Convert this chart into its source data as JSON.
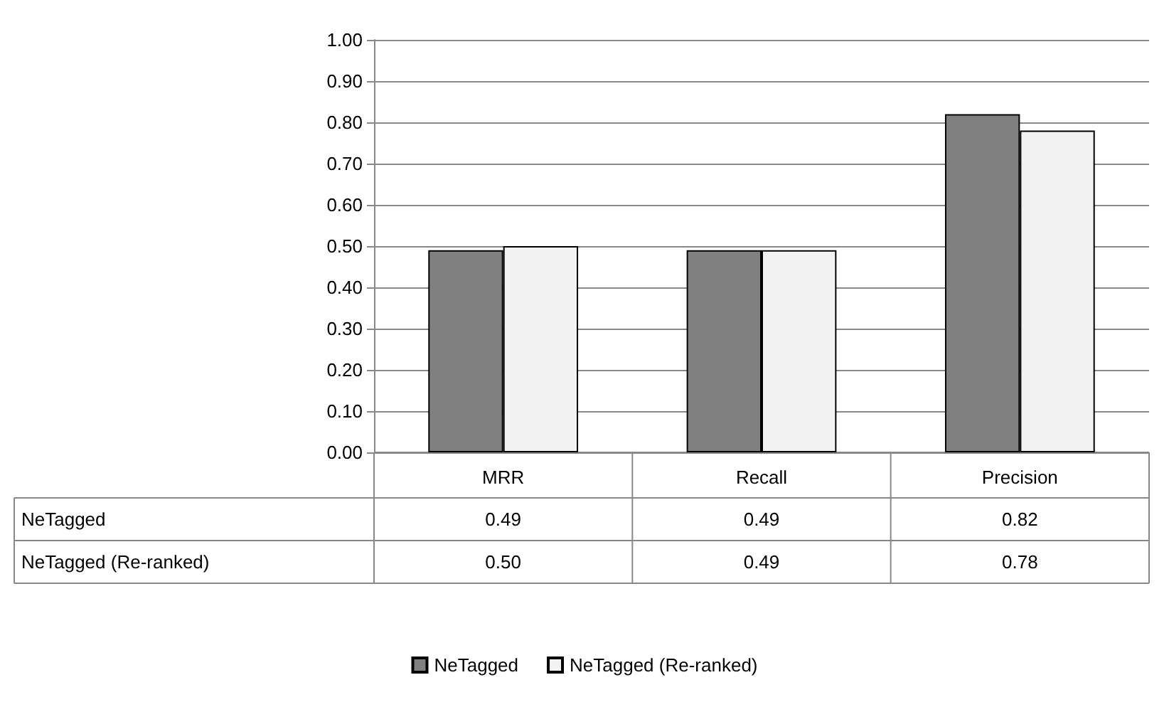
{
  "chart_data": {
    "type": "bar",
    "categories": [
      "MRR",
      "Recall",
      "Precision"
    ],
    "series": [
      {
        "name": "NeTagged",
        "color": "#808080",
        "values": [
          0.49,
          0.49,
          0.82
        ],
        "value_labels": [
          "0.49",
          "0.49",
          "0.82"
        ]
      },
      {
        "name": "NeTagged (Re-ranked)",
        "color": "#f2f2f2",
        "values": [
          0.5,
          0.49,
          0.78
        ],
        "value_labels": [
          "0.50",
          "0.49",
          "0.78"
        ]
      }
    ],
    "ylim": [
      0,
      1
    ],
    "yticks": [
      {
        "value": 0,
        "label": "0.00"
      },
      {
        "value": 0.1,
        "label": "0.10"
      },
      {
        "value": 0.2,
        "label": "0.20"
      },
      {
        "value": 0.3,
        "label": "0.30"
      },
      {
        "value": 0.4,
        "label": "0.40"
      },
      {
        "value": 0.5,
        "label": "0.50"
      },
      {
        "value": 0.6,
        "label": "0.60"
      },
      {
        "value": 0.7,
        "label": "0.70"
      },
      {
        "value": 0.8,
        "label": "0.80"
      },
      {
        "value": 0.9,
        "label": "0.90"
      },
      {
        "value": 1,
        "label": "1.00"
      }
    ],
    "grid": "y",
    "legend": "bottom"
  }
}
